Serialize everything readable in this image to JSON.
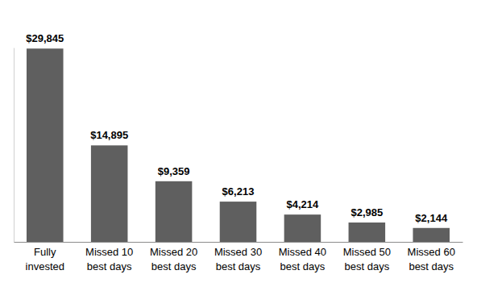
{
  "chart_data": {
    "type": "bar",
    "categories": [
      "Fully invested",
      "Missed 10 best days",
      "Missed 20 best days",
      "Missed 30 best days",
      "Missed 40 best days",
      "Missed 50 best days",
      "Missed 60 best days"
    ],
    "values": [
      29845,
      14895,
      9359,
      6213,
      4214,
      2985,
      2144
    ],
    "value_labels": [
      "$29,845",
      "$14,895",
      "$9,359",
      "$6,213",
      "$4,214",
      "$2,985",
      "$2,144"
    ],
    "color": "#5f5f5f",
    "ylim": [
      0,
      30000
    ],
    "yticks": [],
    "data_labels": true,
    "tick_labels": "x",
    "grid": false
  }
}
